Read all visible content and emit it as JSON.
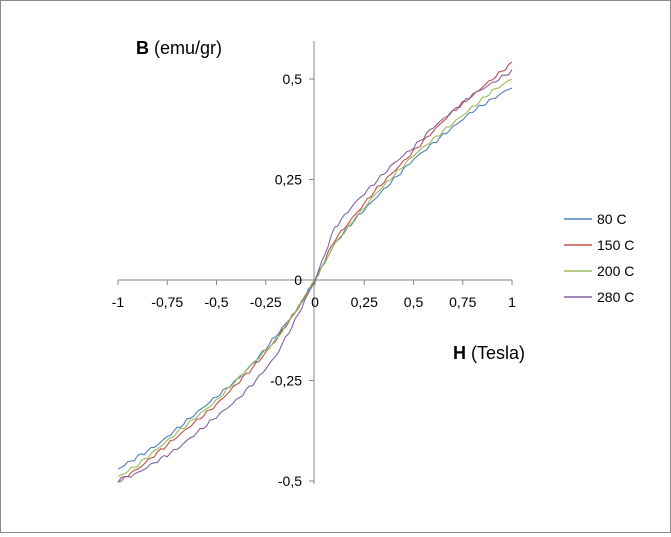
{
  "chart_data": {
    "type": "line",
    "xlabel_bold": "H",
    "xlabel_rest": " (Tesla)",
    "ylabel_bold": "B",
    "ylabel_rest": " (emu/gr)",
    "xlim": [
      -1,
      1
    ],
    "ylim": [
      -0.5,
      0.6
    ],
    "x_ticks": [
      "-1",
      "-0,75",
      "-0,5",
      "-0,25",
      "0",
      "0,25",
      "0,5",
      "0,75",
      "1"
    ],
    "x_tick_values": [
      -1,
      -0.75,
      -0.5,
      -0.25,
      0,
      0.25,
      0.5,
      0.75,
      1
    ],
    "y_ticks": [
      "0,5",
      "0,25",
      "0",
      "-0,25",
      "-0,5"
    ],
    "y_tick_values": [
      0.5,
      0.25,
      0,
      -0.25,
      -0.5
    ],
    "grid": false,
    "legend_position": "right",
    "x": [
      -1,
      -0.9,
      -0.8,
      -0.7,
      -0.6,
      -0.5,
      -0.4,
      -0.3,
      -0.2,
      -0.1,
      0,
      0.1,
      0.2,
      0.3,
      0.4,
      0.5,
      0.6,
      0.7,
      0.8,
      0.9,
      1
    ],
    "series": [
      {
        "name": "80 C",
        "color": "#4f81bd",
        "values": [
          -0.47,
          -0.44,
          -0.41,
          -0.37,
          -0.33,
          -0.29,
          -0.25,
          -0.2,
          -0.14,
          -0.08,
          0,
          0.09,
          0.15,
          0.2,
          0.25,
          0.3,
          0.34,
          0.38,
          0.42,
          0.45,
          0.48
        ]
      },
      {
        "name": "150 C",
        "color": "#c0504d",
        "values": [
          -0.5,
          -0.47,
          -0.43,
          -0.39,
          -0.35,
          -0.31,
          -0.26,
          -0.21,
          -0.15,
          -0.08,
          0,
          0.1,
          0.16,
          0.22,
          0.27,
          0.32,
          0.37,
          0.42,
          0.46,
          0.5,
          0.54
        ]
      },
      {
        "name": "200 C",
        "color": "#9bbb59",
        "values": [
          -0.49,
          -0.46,
          -0.42,
          -0.38,
          -0.34,
          -0.3,
          -0.25,
          -0.2,
          -0.15,
          -0.08,
          0,
          0.09,
          0.15,
          0.21,
          0.26,
          0.31,
          0.35,
          0.39,
          0.43,
          0.47,
          0.5
        ]
      },
      {
        "name": "280 C",
        "color": "#8064a2",
        "values": [
          -0.5,
          -0.48,
          -0.45,
          -0.42,
          -0.38,
          -0.34,
          -0.3,
          -0.25,
          -0.19,
          -0.1,
          0,
          0.13,
          0.19,
          0.24,
          0.29,
          0.33,
          0.38,
          0.42,
          0.46,
          0.49,
          0.52
        ]
      }
    ]
  }
}
